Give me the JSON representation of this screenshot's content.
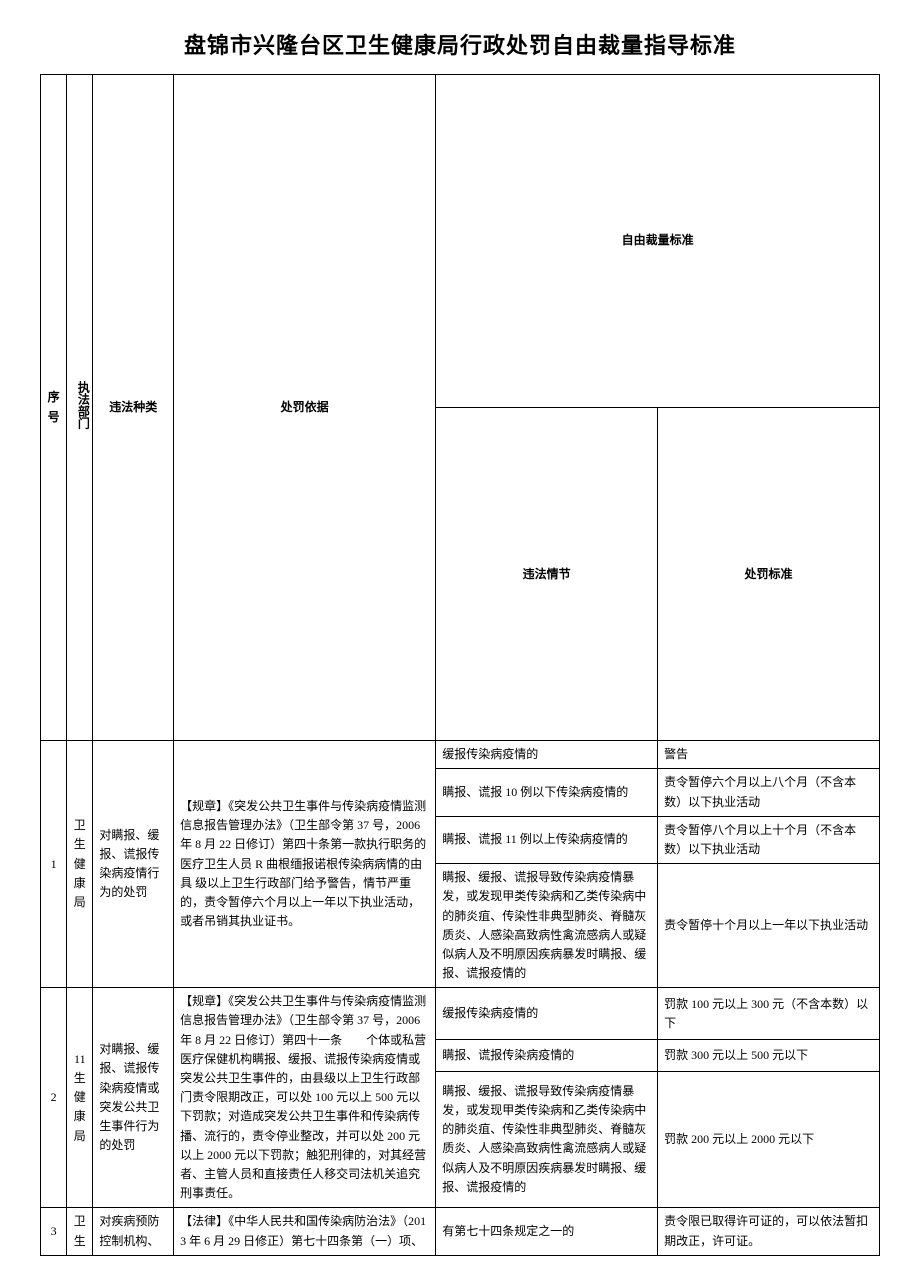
{
  "title": "盘锦市兴隆台区卫生健康局行政处罚自由裁量指导标准",
  "head": {
    "seq": "序号",
    "dept": "执法部门",
    "type": "违法种类",
    "basis": "处罚依据",
    "discretion": "自由裁量标准",
    "situation": "违法情节",
    "standard": "处罚标准"
  },
  "rows": [
    {
      "seq": "1",
      "dept": "卫生健康局",
      "type": "对瞒报、缓报、谎报传染病疫情行为的处罚",
      "basis": "【规章】《突发公共卫生事件与传染病疫情监测信息报告管理办法》（卫生部令第 37 号，2006 年 8 月 22 日修订）第四十条第一款执行职务的医疗卫生人员 R 曲根缅报诺根传染病病情的由具\n\n级以上卫生行政部门给予警告，情节严重的，责令暂停六个月以上一年以下执业活动，或者吊销其执业证书。",
      "items": [
        {
          "situation": "缓报传染病疫情的",
          "standard": "警告"
        },
        {
          "situation": "瞒报、谎报 10 例以下传染病疫情的",
          "standard": "责令暂停六个月以上八个月（不含本数）以下执业活动"
        },
        {
          "situation": "瞒报、谎报 11 例以上传染病疫情的",
          "standard": "责令暂停八个月以上十个月（不含本数）以下执业活动"
        },
        {
          "situation": "瞒报、缓报、谎报导致传染病疫情暴发，或发现甲类传染病和乙类传染病中的肺炎疽、传染性非典型肺炎、脊髓灰质炎、人感染高致病性禽流感病人或疑似病人及不明原因疾病暴发时瞒报、缓报、谎报疫情的",
          "standard": "责令暂停十个月以上一年以下执业活动"
        }
      ]
    },
    {
      "seq": "2",
      "dept": "11生健康局",
      "type": "对瞒报、缓报、谎报传染病疫情或突发公共卫生事件行为的处罚",
      "basis": "【规章】《突发公共卫生事件与传染病疫情监测信息报告管理办法》（卫生部令第 37 号，2006 年 8 月 22 日修订）第四十一条　　个体或私营医疗保健机构瞒报、缓报、谎报传染病疫情或突发公共卫生事件的，由县级以上卫生行政部门责令限期改正，可以处 100 元以上 500 元以下罚款；对造成突发公共卫生事件和传染病传播、流行的，责令停业整改，并可以处 200 元以上 2000 元以下罚款；触犯刑律的，对其经营者、主管人员和直接责任人移交司法机关追究刑事责任。",
      "items": [
        {
          "situation": "缓报传染病疫情的",
          "standard": "罚款 100 元以上 300 元（不含本数）以下"
        },
        {
          "situation": "瞒报、谎报传染病疫情的",
          "standard": "罚款 300 元以上 500 元以下"
        },
        {
          "situation": "瞒报、缓报、谎报导致传染病疫情暴发，或发现甲类传染病和乙类传染病中的肺炎疽、传染性非典型肺炎、脊髓灰质炎、人感染高致病性禽流感病人或疑似病人及不明原因疾病暴发时瞒报、缓报、谎报疫情的",
          "standard": "罚款 200 元以上 2000 元以下"
        }
      ]
    },
    {
      "seq": "3",
      "dept": "卫生",
      "type": "对疾病预防控制机构、",
      "basis": "【法律】《中华人民共和国传染病防治法》（2013 年 6 月 29 日修正）第七十四条第（一）项、",
      "items": [
        {
          "situation": "有第七十四条规定之一的",
          "standard": "责令限已取得许可证的，可以依法暂扣期改正，许可证。"
        }
      ]
    }
  ]
}
